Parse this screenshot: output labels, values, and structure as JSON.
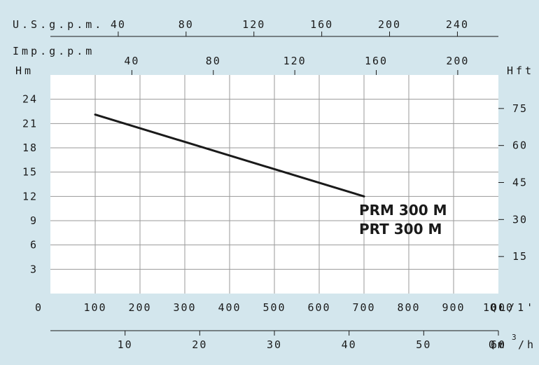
{
  "chart_data": {
    "type": "line",
    "x": [
      100,
      700
    ],
    "series": [
      {
        "name": "",
        "values": [
          22.1,
          12.0
        ]
      }
    ],
    "xlim": [
      0,
      1000
    ],
    "ylim": [
      0,
      27
    ],
    "grid": true,
    "x_ticks": [
      0,
      100,
      200,
      300,
      400,
      500,
      600,
      700,
      800,
      900,
      1000
    ],
    "y_ticks": [
      3,
      6,
      9,
      12,
      15,
      18,
      21,
      24
    ],
    "right_ticks": [
      15,
      30,
      45,
      60,
      75
    ],
    "usgpm_ticks": [
      40,
      80,
      120,
      160,
      200,
      240
    ],
    "impgpm_ticks": [
      40,
      80,
      120,
      160,
      200
    ],
    "m3h_ticks": [
      10,
      20,
      30,
      40,
      50,
      60
    ],
    "labels": {
      "usgpm": "U.S.g.p.m.",
      "impgpm": "Imp.g.p.m",
      "hm": "Hm",
      "hft": "Hft",
      "ql": "QL/1'",
      "qm_base": "Qm",
      "qm_sup": "3",
      "qm_tail": "/h",
      "zero": "0"
    },
    "models": [
      "PRM 300 M",
      "PRT  300 M"
    ]
  },
  "colors": {
    "background": "#d3e6ed",
    "plot": "#ffffff",
    "grid": "#9a9a9a",
    "ink": "#1a1a1a"
  }
}
